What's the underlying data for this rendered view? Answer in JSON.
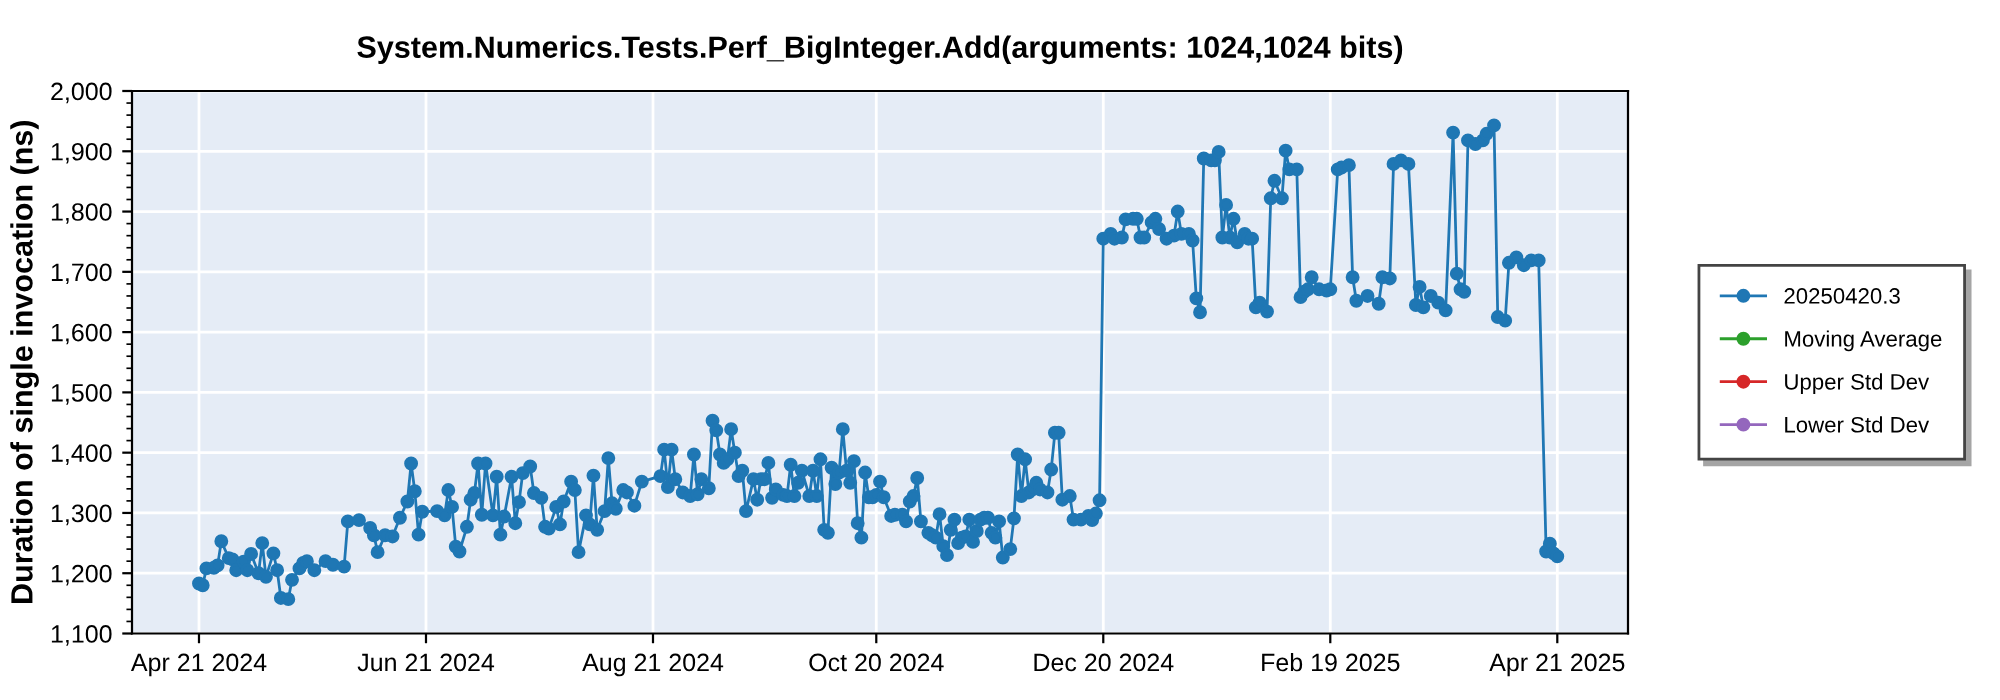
{
  "chart_data": {
    "type": "line",
    "title": "System.Numerics.Tests.Perf_BigInteger.Add(arguments: 1024,1024 bits)",
    "ylabel": "Duration of single invocation (ns)",
    "x": [
      "2024-04-21",
      "2024-04-22",
      "2024-04-23",
      "2024-04-25",
      "2024-04-26",
      "2024-04-27",
      "2024-04-29",
      "2024-04-30",
      "2024-05-01",
      "2024-05-03",
      "2024-05-04",
      "2024-05-05",
      "2024-05-07",
      "2024-05-08",
      "2024-05-09",
      "2024-05-11",
      "2024-05-12",
      "2024-05-13",
      "2024-05-15",
      "2024-05-16",
      "2024-05-18",
      "2024-05-19",
      "2024-05-20",
      "2024-05-22",
      "2024-05-25",
      "2024-05-27",
      "2024-05-30",
      "2024-05-31",
      "2024-06-03",
      "2024-06-06",
      "2024-06-07",
      "2024-06-08",
      "2024-06-10",
      "2024-06-12",
      "2024-06-14",
      "2024-06-16",
      "2024-06-17",
      "2024-06-18",
      "2024-06-19",
      "2024-06-20",
      "2024-06-24",
      "2024-06-26",
      "2024-06-27",
      "2024-06-28",
      "2024-06-29",
      "2024-06-30",
      "2024-07-02",
      "2024-07-03",
      "2024-07-04",
      "2024-07-05",
      "2024-07-06",
      "2024-07-07",
      "2024-07-09",
      "2024-07-10",
      "2024-07-11",
      "2024-07-12",
      "2024-07-14",
      "2024-07-15",
      "2024-07-16",
      "2024-07-17",
      "2024-07-19",
      "2024-07-20",
      "2024-07-22",
      "2024-07-23",
      "2024-07-24",
      "2024-07-26",
      "2024-07-27",
      "2024-07-28",
      "2024-07-30",
      "2024-07-31",
      "2024-08-01",
      "2024-08-03",
      "2024-08-04",
      "2024-08-05",
      "2024-08-06",
      "2024-08-08",
      "2024-08-09",
      "2024-08-10",
      "2024-08-11",
      "2024-08-13",
      "2024-08-14",
      "2024-08-16",
      "2024-08-18",
      "2024-08-23",
      "2024-08-24",
      "2024-08-25",
      "2024-08-26",
      "2024-08-27",
      "2024-08-29",
      "2024-08-31",
      "2024-09-01",
      "2024-09-02",
      "2024-09-03",
      "2024-09-05",
      "2024-09-06",
      "2024-09-07",
      "2024-09-08",
      "2024-09-09",
      "2024-09-10",
      "2024-09-11",
      "2024-09-12",
      "2024-09-13",
      "2024-09-14",
      "2024-09-15",
      "2024-09-17",
      "2024-09-18",
      "2024-09-19",
      "2024-09-20",
      "2024-09-21",
      "2024-09-22",
      "2024-09-23",
      "2024-09-25",
      "2024-09-26",
      "2024-09-27",
      "2024-09-28",
      "2024-09-29",
      "2024-09-30",
      "2024-10-02",
      "2024-10-03",
      "2024-10-04",
      "2024-10-05",
      "2024-10-06",
      "2024-10-07",
      "2024-10-08",
      "2024-10-09",
      "2024-10-10",
      "2024-10-11",
      "2024-10-12",
      "2024-10-13",
      "2024-10-14",
      "2024-10-15",
      "2024-10-16",
      "2024-10-17",
      "2024-10-18",
      "2024-10-19",
      "2024-10-20",
      "2024-10-21",
      "2024-10-22",
      "2024-10-24",
      "2024-10-25",
      "2024-10-27",
      "2024-10-28",
      "2024-10-29",
      "2024-10-30",
      "2024-10-31",
      "2024-11-01",
      "2024-11-03",
      "2024-11-04",
      "2024-11-05",
      "2024-11-06",
      "2024-11-07",
      "2024-11-08",
      "2024-11-09",
      "2024-11-10",
      "2024-11-11",
      "2024-11-12",
      "2024-11-13",
      "2024-11-14",
      "2024-11-15",
      "2024-11-16",
      "2024-11-17",
      "2024-11-18",
      "2024-11-19",
      "2024-11-20",
      "2024-11-21",
      "2024-11-22",
      "2024-11-23",
      "2024-11-25",
      "2024-11-26",
      "2024-11-27",
      "2024-11-28",
      "2024-11-29",
      "2024-11-30",
      "2024-12-01",
      "2024-12-02",
      "2024-12-03",
      "2024-12-05",
      "2024-12-06",
      "2024-12-07",
      "2024-12-08",
      "2024-12-09",
      "2024-12-11",
      "2024-12-12",
      "2024-12-14",
      "2024-12-16",
      "2024-12-17",
      "2024-12-18",
      "2024-12-19",
      "2024-12-20",
      "2024-12-22",
      "2024-12-23",
      "2024-12-25",
      "2024-12-26",
      "2024-12-28",
      "2024-12-29",
      "2024-12-30",
      "2024-12-31",
      "2025-01-02",
      "2025-01-03",
      "2025-01-04",
      "2025-01-06",
      "2025-01-08",
      "2025-01-09",
      "2025-01-10",
      "2025-01-12",
      "2025-01-13",
      "2025-01-14",
      "2025-01-15",
      "2025-01-16",
      "2025-01-18",
      "2025-01-19",
      "2025-01-20",
      "2025-01-21",
      "2025-01-22",
      "2025-01-23",
      "2025-01-24",
      "2025-01-25",
      "2025-01-27",
      "2025-01-28",
      "2025-01-29",
      "2025-01-30",
      "2025-01-31",
      "2025-02-02",
      "2025-02-03",
      "2025-02-04",
      "2025-02-06",
      "2025-02-07",
      "2025-02-08",
      "2025-02-10",
      "2025-02-11",
      "2025-02-12",
      "2025-02-13",
      "2025-02-14",
      "2025-02-16",
      "2025-02-18",
      "2025-02-19",
      "2025-02-21",
      "2025-02-22",
      "2025-02-24",
      "2025-02-25",
      "2025-02-26",
      "2025-03-01",
      "2025-03-04",
      "2025-03-05",
      "2025-03-07",
      "2025-03-08",
      "2025-03-10",
      "2025-03-12",
      "2025-03-14",
      "2025-03-15",
      "2025-03-16",
      "2025-03-18",
      "2025-03-20",
      "2025-03-22",
      "2025-03-24",
      "2025-03-25",
      "2025-03-26",
      "2025-03-27",
      "2025-03-28",
      "2025-03-30",
      "2025-04-01",
      "2025-04-02",
      "2025-04-04",
      "2025-04-05",
      "2025-04-07",
      "2025-04-08",
      "2025-04-10",
      "2025-04-12",
      "2025-04-14",
      "2025-04-16",
      "2025-04-18",
      "2025-04-19",
      "2025-04-20",
      "2025-04-21"
    ],
    "series": [
      {
        "name": "20250420.3",
        "color": "#1f77b4",
        "values": [
          1183,
          1180,
          1208,
          1209,
          1213,
          1253,
          1225,
          1223,
          1205,
          1219,
          1205,
          1232,
          1200,
          1250,
          1194,
          1233,
          1205,
          1159,
          1157,
          1189,
          1208,
          1217,
          1220,
          1205,
          1220,
          1214,
          1211,
          1286,
          1288,
          1275,
          1263,
          1235,
          1263,
          1261,
          1292,
          1319,
          1382,
          1336,
          1264,
          1302,
          1303,
          1296,
          1338,
          1310,
          1244,
          1236,
          1277,
          1322,
          1333,
          1382,
          1297,
          1382,
          1296,
          1360,
          1264,
          1294,
          1360,
          1283,
          1318,
          1366,
          1377,
          1333,
          1325,
          1277,
          1274,
          1310,
          1281,
          1319,
          1352,
          1338,
          1235,
          1296,
          1281,
          1362,
          1272,
          1303,
          1391,
          1316,
          1307,
          1338,
          1334,
          1312,
          1352,
          1361,
          1405,
          1343,
          1405,
          1356,
          1334,
          1328,
          1397,
          1331,
          1356,
          1341,
          1453,
          1437,
          1397,
          1383,
          1389,
          1439,
          1400,
          1361,
          1370,
          1303,
          1356,
          1322,
          1356,
          1356,
          1383,
          1325,
          1339,
          1330,
          1328,
          1380,
          1328,
          1350,
          1370,
          1328,
          1370,
          1328,
          1389,
          1272,
          1267,
          1375,
          1348,
          1367,
          1439,
          1370,
          1350,
          1386,
          1283,
          1259,
          1367,
          1326,
          1326,
          1330,
          1352,
          1326,
          1295,
          1297,
          1297,
          1286,
          1319,
          1328,
          1358,
          1286,
          1267,
          1263,
          1259,
          1298,
          1245,
          1230,
          1272,
          1289,
          1250,
          1259,
          1261,
          1289,
          1252,
          1270,
          1289,
          1292,
          1292,
          1267,
          1259,
          1286,
          1226,
          1240,
          1291,
          1397,
          1328,
          1389,
          1334,
          1339,
          1350,
          1339,
          1334,
          1372,
          1433,
          1433,
          1322,
          1328,
          1289,
          1289,
          1295,
          1288,
          1299,
          1321,
          1755,
          1763,
          1755,
          1757,
          1787,
          1788,
          1788,
          1757,
          1757,
          1782,
          1788,
          1771,
          1755,
          1760,
          1800,
          1763,
          1763,
          1752,
          1656,
          1633,
          1888,
          1885,
          1885,
          1899,
          1757,
          1811,
          1757,
          1788,
          1749,
          1763,
          1755,
          1755,
          1641,
          1649,
          1634,
          1822,
          1851,
          1822,
          1901,
          1870,
          1870,
          1658,
          1667,
          1671,
          1691,
          1671,
          1669,
          1671,
          1870,
          1873,
          1877,
          1691,
          1652,
          1660,
          1647,
          1691,
          1689,
          1879,
          1885,
          1879,
          1645,
          1675,
          1641,
          1660,
          1649,
          1636,
          1931,
          1697,
          1671,
          1667,
          1918,
          1912,
          1918,
          1929,
          1943,
          1625,
          1619,
          1715,
          1724,
          1711,
          1719,
          1719,
          1236,
          1249,
          1233,
          1228
        ]
      },
      {
        "name": "Moving Average",
        "color": "#2ca02c",
        "values": [
          null,
          null,
          null,
          null,
          null,
          null,
          null,
          null,
          null,
          null,
          null,
          null,
          null,
          null,
          null,
          null,
          null,
          null,
          null,
          null,
          null,
          null,
          null,
          null,
          null,
          null,
          null,
          null,
          null,
          null,
          null,
          null,
          null,
          null,
          null,
          null,
          null,
          null,
          null,
          null,
          null,
          null,
          null,
          null,
          null,
          null,
          null,
          null,
          null,
          null,
          null,
          null,
          null,
          null,
          null,
          null,
          null,
          null,
          null,
          null,
          null,
          null,
          null,
          null,
          null,
          null,
          null,
          null,
          null,
          null,
          null,
          null,
          null,
          null,
          null,
          null,
          null,
          null,
          null,
          null,
          null,
          null,
          null,
          null,
          null,
          null,
          null,
          null,
          null,
          null,
          null,
          null,
          null,
          null,
          null,
          null,
          null,
          null,
          null,
          null,
          null,
          null,
          null,
          null,
          null,
          null,
          null,
          null,
          null,
          null,
          null,
          null,
          null,
          null,
          null,
          null,
          null,
          null,
          null,
          null,
          null,
          null,
          null,
          null,
          null,
          null,
          null,
          null,
          null,
          null,
          null,
          null,
          null,
          null,
          null,
          null,
          null,
          null,
          null,
          null,
          null,
          null,
          null,
          null,
          null,
          null,
          null,
          null,
          null,
          null,
          null,
          null,
          null,
          null,
          null,
          null,
          null,
          null,
          null,
          null,
          null,
          null,
          null,
          null,
          null,
          null,
          null,
          null,
          null,
          null,
          null,
          null,
          null,
          null,
          null,
          null,
          null,
          null,
          null,
          null,
          null,
          null,
          null,
          null,
          null,
          null,
          null,
          null,
          null,
          null,
          null,
          null,
          null,
          null,
          null,
          null,
          null,
          null,
          null,
          null,
          null,
          null,
          null,
          null,
          null,
          null,
          null,
          null,
          null,
          null,
          null,
          null,
          null,
          null,
          null,
          null,
          null,
          null,
          null,
          null,
          null,
          null,
          null,
          null,
          null,
          null,
          null,
          null,
          null,
          null,
          null,
          null,
          null,
          null,
          null,
          null,
          null,
          null,
          null,
          null,
          null,
          null,
          null,
          null,
          null,
          null,
          null,
          null,
          null,
          null,
          null,
          null,
          null,
          null,
          null,
          null,
          null,
          null,
          null,
          null,
          null,
          null,
          null,
          null,
          null,
          null,
          null,
          null,
          null,
          null,
          null,
          null,
          null,
          null
        ]
      },
      {
        "name": "Upper Std Dev",
        "color": "#d62728",
        "values": [
          null,
          null,
          null,
          null,
          null,
          null,
          null,
          null,
          null,
          null,
          null,
          null,
          null,
          null,
          null,
          null,
          null,
          null,
          null,
          null,
          null,
          null,
          null,
          null,
          null,
          null,
          null,
          null,
          null,
          null,
          null,
          null,
          null,
          null,
          null,
          null,
          null,
          null,
          null,
          null,
          null,
          null,
          null,
          null,
          null,
          null,
          null,
          null,
          null,
          null,
          null,
          null,
          null,
          null,
          null,
          null,
          null,
          null,
          null,
          null,
          null,
          null,
          null,
          null,
          null,
          null,
          null,
          null,
          null,
          null,
          null,
          null,
          null,
          null,
          null,
          null,
          null,
          null,
          null,
          null,
          null,
          null,
          null,
          null,
          null,
          null,
          null,
          null,
          null,
          null,
          null,
          null,
          null,
          null,
          null,
          null,
          null,
          null,
          null,
          null,
          null,
          null,
          null,
          null,
          null,
          null,
          null,
          null,
          null,
          null,
          null,
          null,
          null,
          null,
          null,
          null,
          null,
          null,
          null,
          null,
          null,
          null,
          null,
          null,
          null,
          null,
          null,
          null,
          null,
          null,
          null,
          null,
          null,
          null,
          null,
          null,
          null,
          null,
          null,
          null,
          null,
          null,
          null,
          null,
          null,
          null,
          null,
          null,
          null,
          null,
          null,
          null,
          null,
          null,
          null,
          null,
          null,
          null,
          null,
          null,
          null,
          null,
          null,
          null,
          null,
          null,
          null,
          null,
          null,
          null,
          null,
          null,
          null,
          null,
          null,
          null,
          null,
          null,
          null,
          null,
          null,
          null,
          null,
          null,
          null,
          null,
          null,
          null,
          null,
          null,
          null,
          null,
          null,
          null,
          null,
          null,
          null,
          null,
          null,
          null,
          null,
          null,
          null,
          null,
          null,
          null,
          null,
          null,
          null,
          null,
          null,
          null,
          null,
          null,
          null,
          null,
          null,
          null,
          null,
          null,
          null,
          null,
          null,
          null,
          null,
          null,
          null,
          null,
          null,
          null,
          null,
          null,
          null,
          null,
          null,
          null,
          null,
          null,
          null,
          null,
          null,
          null,
          null,
          null,
          null,
          null,
          null,
          null,
          null,
          null,
          null,
          null,
          null,
          null,
          null,
          null,
          null,
          null,
          null,
          null,
          null,
          null,
          null,
          null,
          null,
          null,
          null,
          null,
          null,
          null,
          null,
          null,
          null,
          null
        ]
      },
      {
        "name": "Lower Std Dev",
        "color": "#9467bd",
        "values": [
          null,
          null,
          null,
          null,
          null,
          null,
          null,
          null,
          null,
          null,
          null,
          null,
          null,
          null,
          null,
          null,
          null,
          null,
          null,
          null,
          null,
          null,
          null,
          null,
          null,
          null,
          null,
          null,
          null,
          null,
          null,
          null,
          null,
          null,
          null,
          null,
          null,
          null,
          null,
          null,
          null,
          null,
          null,
          null,
          null,
          null,
          null,
          null,
          null,
          null,
          null,
          null,
          null,
          null,
          null,
          null,
          null,
          null,
          null,
          null,
          null,
          null,
          null,
          null,
          null,
          null,
          null,
          null,
          null,
          null,
          null,
          null,
          null,
          null,
          null,
          null,
          null,
          null,
          null,
          null,
          null,
          null,
          null,
          null,
          null,
          null,
          null,
          null,
          null,
          null,
          null,
          null,
          null,
          null,
          null,
          null,
          null,
          null,
          null,
          null,
          null,
          null,
          null,
          null,
          null,
          null,
          null,
          null,
          null,
          null,
          null,
          null,
          null,
          null,
          null,
          null,
          null,
          null,
          null,
          null,
          null,
          null,
          null,
          null,
          null,
          null,
          null,
          null,
          null,
          null,
          null,
          null,
          null,
          null,
          null,
          null,
          null,
          null,
          null,
          null,
          null,
          null,
          null,
          null,
          null,
          null,
          null,
          null,
          null,
          null,
          null,
          null,
          null,
          null,
          null,
          null,
          null,
          null,
          null,
          null,
          null,
          null,
          null,
          null,
          null,
          null,
          null,
          null,
          null,
          null,
          null,
          null,
          null,
          null,
          null,
          null,
          null,
          null,
          null,
          null,
          null,
          null,
          null,
          null,
          null,
          null,
          null,
          null,
          null,
          null,
          null,
          null,
          null,
          null,
          null,
          null,
          null,
          null,
          null,
          null,
          null,
          null,
          null,
          null,
          null,
          null,
          null,
          null,
          null,
          null,
          null,
          null,
          null,
          null,
          null,
          null,
          null,
          null,
          null,
          null,
          null,
          null,
          null,
          null,
          null,
          null,
          null,
          null,
          null,
          null,
          null,
          null,
          null,
          null,
          null,
          null,
          null,
          null,
          null,
          null,
          null,
          null,
          null,
          null,
          null,
          null,
          null,
          null,
          null,
          null,
          null,
          null,
          null,
          null,
          null,
          null,
          null,
          null,
          null,
          null,
          null,
          null,
          null,
          null,
          null,
          null,
          null,
          null,
          null,
          null,
          null,
          null,
          null,
          null
        ]
      }
    ],
    "xlim": [
      "2024-04-03",
      "2025-05-10"
    ],
    "xticks": [
      {
        "value": "2024-04-21",
        "label": "Apr 21 2024"
      },
      {
        "value": "2024-06-21",
        "label": "Jun 21 2024"
      },
      {
        "value": "2024-08-21",
        "label": "Aug 21 2024"
      },
      {
        "value": "2024-10-20",
        "label": "Oct 20 2024"
      },
      {
        "value": "2024-12-20",
        "label": "Dec 20 2024"
      },
      {
        "value": "2025-02-19",
        "label": "Feb 19 2025"
      },
      {
        "value": "2025-04-21",
        "label": "Apr 21 2025"
      }
    ],
    "ylim": [
      1100,
      2000
    ],
    "yticks": [
      {
        "value": 1100,
        "label": "1,100"
      },
      {
        "value": 1200,
        "label": "1,200"
      },
      {
        "value": 1300,
        "label": "1,300"
      },
      {
        "value": 1400,
        "label": "1,400"
      },
      {
        "value": 1500,
        "label": "1,500"
      },
      {
        "value": 1600,
        "label": "1,600"
      },
      {
        "value": 1700,
        "label": "1,700"
      },
      {
        "value": 1800,
        "label": "1,800"
      },
      {
        "value": 1900,
        "label": "1,900"
      },
      {
        "value": 2000,
        "label": "2,000"
      }
    ],
    "grid": true,
    "legend": "right",
    "marker": "circle",
    "line_style": "solid"
  }
}
